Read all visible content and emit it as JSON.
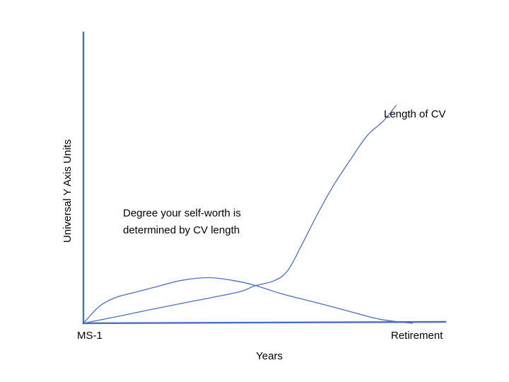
{
  "chart_data": {
    "type": "line",
    "title": "",
    "xlabel": "Years",
    "ylabel": "Universal Y Axis Units",
    "xlim": [
      0,
      100
    ],
    "ylim": [
      0,
      100
    ],
    "x_tick_labels": {
      "start": "MS-1",
      "end": "Retirement"
    },
    "grid": false,
    "legend": "none",
    "color": "#4a6fc2",
    "series": [
      {
        "name": "Length of CV",
        "x": [
          0,
          10,
          20,
          30,
          40,
          48,
          52,
          58,
          62,
          66,
          71,
          76,
          81,
          86,
          91,
          95
        ],
        "y": [
          0,
          3.3,
          6.7,
          10.0,
          13.2,
          16.0,
          18.7,
          21.3,
          26.3,
          38.3,
          54.4,
          69.1,
          81.6,
          93.5,
          101.0,
          109.0
        ],
        "label": "Length of CV"
      },
      {
        "name": "Degree your self-worth is determined by CV length",
        "x": [
          0,
          5,
          10,
          15,
          22,
          30,
          38,
          45,
          52,
          60,
          70,
          80,
          90,
          100
        ],
        "y": [
          0,
          8.7,
          13.0,
          15.2,
          18.2,
          21.5,
          22.8,
          21.5,
          19.0,
          14.8,
          10.6,
          6.3,
          2.0,
          0
        ],
        "label_lines": [
          "Degree your self-worth is",
          "determined by CV length"
        ]
      }
    ]
  }
}
